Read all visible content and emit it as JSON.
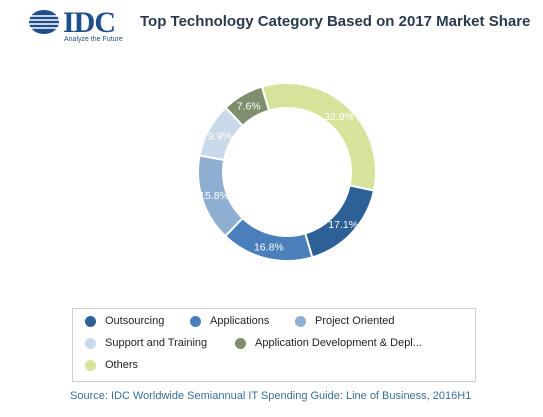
{
  "logo": {
    "wordmark": "IDC",
    "tagline": "Analyze the Future"
  },
  "chart_data": {
    "type": "pie",
    "title": "Top Technology Category Based on 2017 Market Share",
    "categories": [
      "Outsourcing",
      "Applications",
      "Project Oriented",
      "Support and Training",
      "Application Development & Depl...",
      "Others"
    ],
    "values": [
      17.1,
      16.8,
      15.8,
      9.9,
      7.6,
      32.9
    ],
    "labels": [
      "17.1%",
      "16.8%",
      "15.8%",
      "9.9%",
      "7.6%",
      "32.9%"
    ],
    "colors": [
      "#2c6096",
      "#4a7fbb",
      "#8eaed2",
      "#c9d9ea",
      "#7f8f6e",
      "#d6e39a"
    ],
    "label_colors": [
      "#ffffff",
      "#ffffff",
      "#ffffff",
      "#ffffff",
      "#ffffff",
      "#ffffff"
    ],
    "legend_position": "bottom"
  },
  "source": "Source: IDC Worldwide Semiannual IT Spending Guide: Line of Business, 2016H1"
}
